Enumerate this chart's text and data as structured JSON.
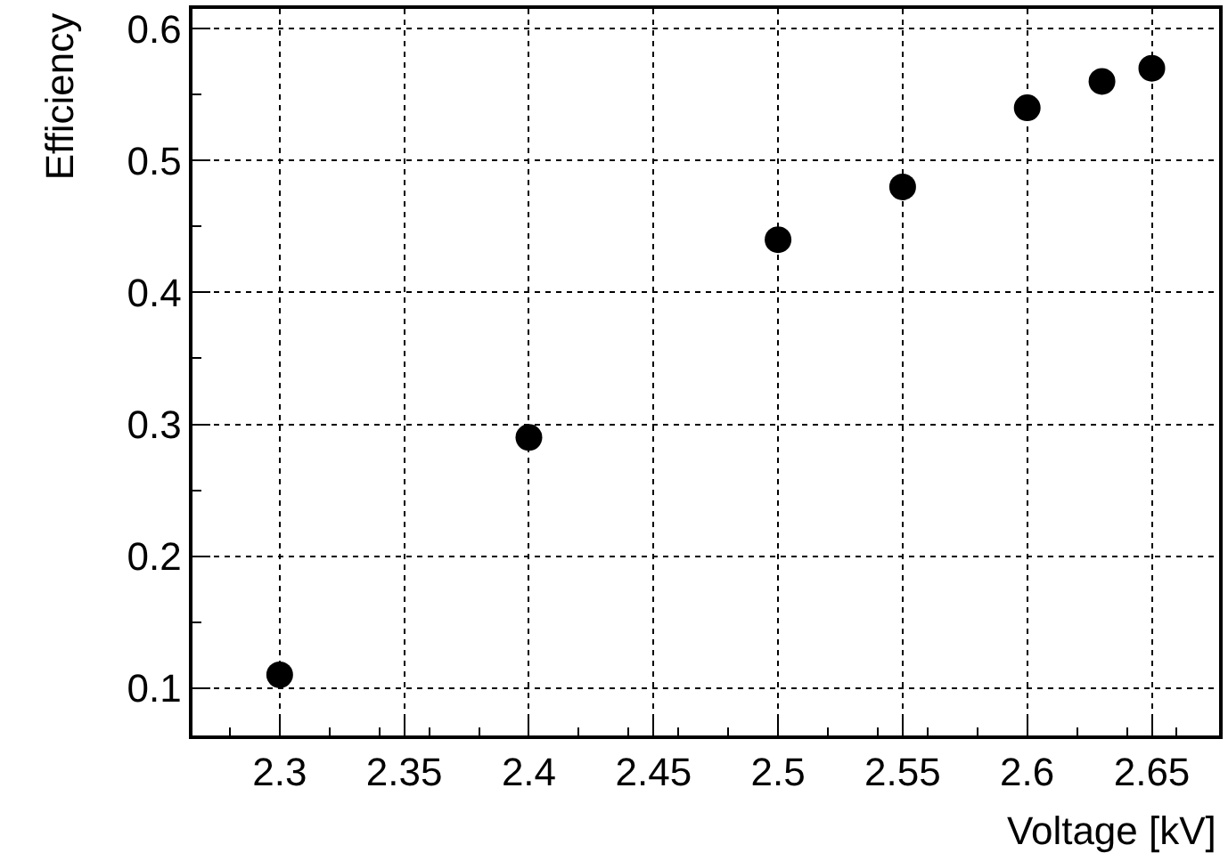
{
  "chart_data": {
    "type": "scatter",
    "xlabel": "Voltage [kV]",
    "ylabel": "Efficiency",
    "x": [
      2.3,
      2.4,
      2.5,
      2.55,
      2.6,
      2.63,
      2.65
    ],
    "series": [
      {
        "color": "#000000",
        "values": [
          0.11,
          0.29,
          0.44,
          0.48,
          0.54,
          0.56,
          0.57
        ]
      }
    ],
    "xlim": [
      2.265,
      2.677
    ],
    "ylim": [
      0.064,
      0.615
    ],
    "xticks": [
      2.3,
      2.35,
      2.4,
      2.45,
      2.5,
      2.55,
      2.6,
      2.65
    ],
    "yticks": [
      0.1,
      0.2,
      0.3,
      0.4,
      0.5,
      0.6
    ],
    "grid": true,
    "marker": "circle",
    "legend": false
  }
}
